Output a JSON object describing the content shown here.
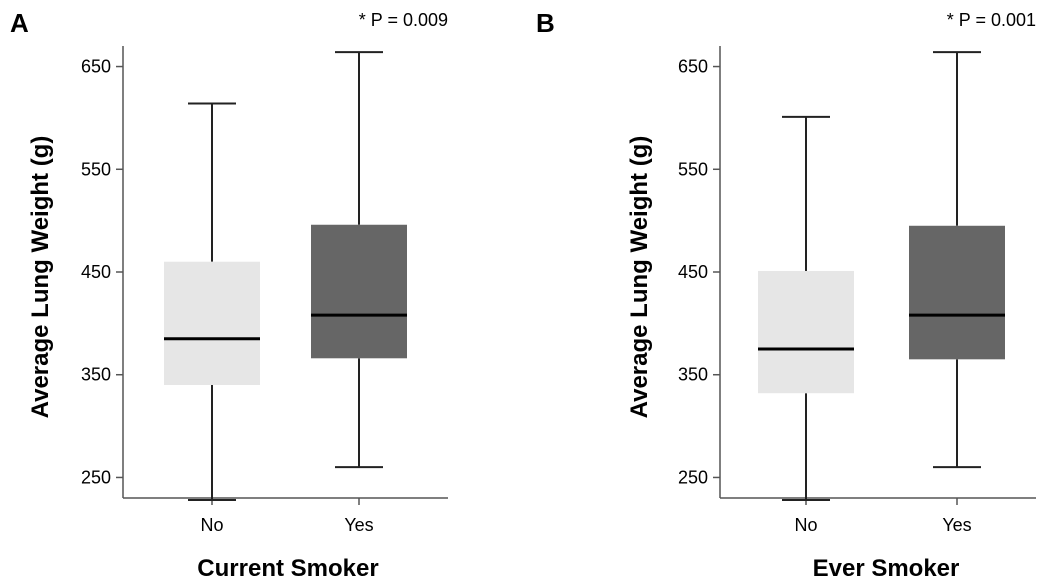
{
  "chart_data": [
    {
      "type": "box",
      "panel": "A",
      "annotation": "* P = 0.009",
      "xlabel": "Current Smoker",
      "ylabel": "Average Lung Weight (g)",
      "categories": [
        "No",
        "Yes"
      ],
      "ylim": [
        230,
        670
      ],
      "yticks": [
        250,
        350,
        450,
        550,
        650
      ],
      "boxes": [
        {
          "category": "No",
          "min": 228,
          "q1": 340,
          "median": 385,
          "q3": 460,
          "max": 614,
          "color": "#e6e6e6"
        },
        {
          "category": "Yes",
          "min": 260,
          "q1": 366,
          "median": 408,
          "q3": 496,
          "max": 664,
          "color": "#666666"
        }
      ]
    },
    {
      "type": "box",
      "panel": "B",
      "annotation": "* P = 0.001",
      "xlabel": "Ever Smoker",
      "ylabel": "Average Lung Weight (g)",
      "categories": [
        "No",
        "Yes"
      ],
      "ylim": [
        230,
        670
      ],
      "yticks": [
        250,
        350,
        450,
        550,
        650
      ],
      "boxes": [
        {
          "category": "No",
          "min": 228,
          "q1": 332,
          "median": 375,
          "q3": 451,
          "max": 601,
          "color": "#e6e6e6"
        },
        {
          "category": "Yes",
          "min": 260,
          "q1": 365,
          "median": 408,
          "q3": 495,
          "max": 664,
          "color": "#666666"
        }
      ]
    }
  ]
}
